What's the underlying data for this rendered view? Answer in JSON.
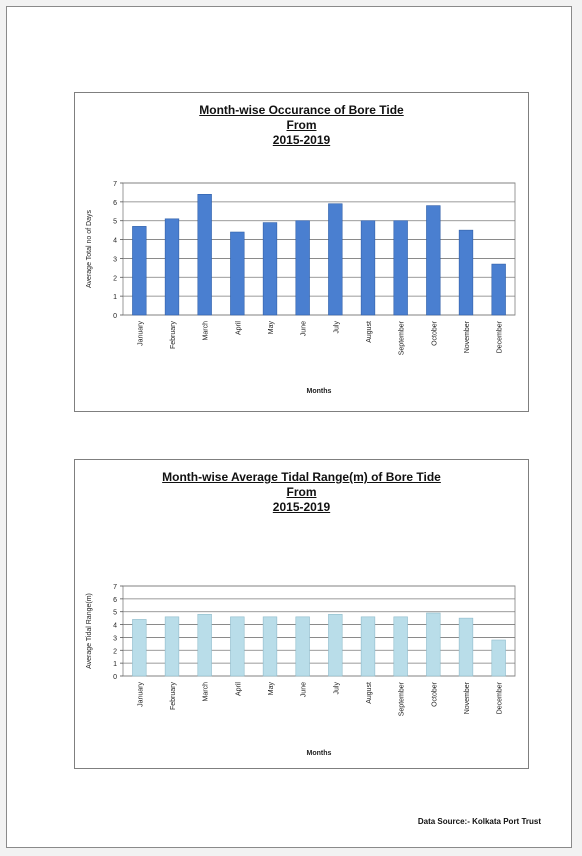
{
  "chart_data": [
    {
      "type": "bar",
      "title_lines": [
        "Month-wise Occurance of Bore Tide",
        "From",
        "2015-2019"
      ],
      "xlabel": "Months",
      "ylabel": "Average Total no of Days",
      "categories": [
        "January",
        "February",
        "March",
        "April",
        "May",
        "June",
        "July",
        "August",
        "September",
        "October",
        "November",
        "December"
      ],
      "values": [
        4.7,
        5.1,
        6.4,
        4.4,
        4.9,
        5.0,
        5.9,
        5.0,
        5.0,
        5.8,
        4.5,
        2.7
      ],
      "ylim": [
        0,
        7
      ],
      "yticks": [
        0,
        1,
        2,
        3,
        4,
        5,
        6,
        7
      ],
      "grid": true,
      "bar_color": "#4a7fd0",
      "bar_stroke": "#2f5ea8"
    },
    {
      "type": "bar",
      "title_lines": [
        "Month-wise Average Tidal Range(m) of Bore Tide",
        "From",
        "2015-2019"
      ],
      "xlabel": "Months",
      "ylabel": "Average Tidal Range(m)",
      "categories": [
        "January",
        "February",
        "March",
        "April",
        "May",
        "June",
        "July",
        "August",
        "September",
        "October",
        "November",
        "December"
      ],
      "values": [
        4.4,
        4.6,
        4.8,
        4.6,
        4.6,
        4.6,
        4.8,
        4.6,
        4.6,
        4.9,
        4.5,
        2.8
      ],
      "ylim": [
        0,
        7
      ],
      "yticks": [
        0,
        1,
        2,
        3,
        4,
        5,
        6,
        7
      ],
      "grid": true,
      "bar_color": "#b9dde9",
      "bar_stroke": "#8fbccb"
    }
  ],
  "source_text": "Data Source:- Kolkata Port Trust"
}
